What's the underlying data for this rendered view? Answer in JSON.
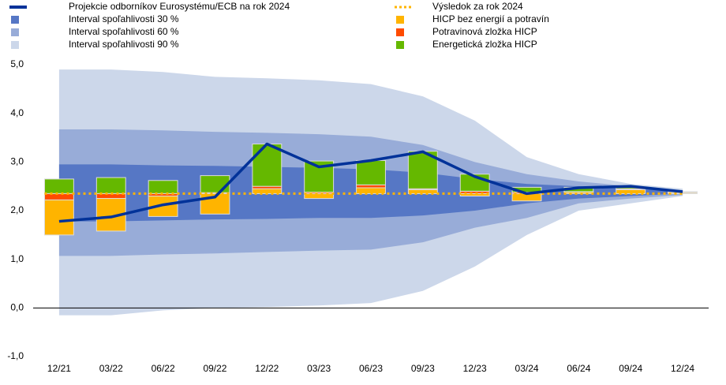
{
  "chart_data": {
    "type": "fan",
    "categories": [
      "12/21",
      "03/22",
      "06/22",
      "09/22",
      "12/22",
      "03/23",
      "06/23",
      "09/23",
      "12/23",
      "03/24",
      "06/24",
      "09/24",
      "12/24"
    ],
    "ylim": [
      -1,
      5
    ],
    "yticks": [
      {
        "value": -1,
        "label": "-1,0"
      },
      {
        "value": 0,
        "label": "0,0"
      },
      {
        "value": 1,
        "label": "1,0"
      },
      {
        "value": 2,
        "label": "2,0"
      },
      {
        "value": 3,
        "label": "3,0"
      },
      {
        "value": 4,
        "label": "4,0"
      },
      {
        "value": 5,
        "label": "5,0"
      }
    ],
    "line": {
      "name": "Projekcie odborníkov Eurosystému/ECB na rok 2024",
      "color": "#003299",
      "values": [
        1.78,
        1.87,
        2.12,
        2.28,
        3.37,
        2.9,
        3.03,
        3.21,
        2.7,
        2.35,
        2.47,
        2.5,
        2.39
      ]
    },
    "bands": [
      {
        "name": "Interval spoľahlivosti 30 %",
        "color": "#5677c5",
        "lower": [
          1.78,
          1.78,
          1.8,
          1.82,
          1.83,
          1.85,
          1.85,
          1.9,
          2.0,
          2.15,
          2.25,
          2.3,
          2.35
        ],
        "upper": [
          2.95,
          2.95,
          2.93,
          2.92,
          2.9,
          2.88,
          2.85,
          2.78,
          2.65,
          2.55,
          2.5,
          2.45,
          2.4
        ]
      },
      {
        "name": "Interval spoľahlivosti 60 %",
        "color": "#98acd8",
        "lower": [
          1.07,
          1.07,
          1.1,
          1.12,
          1.15,
          1.18,
          1.2,
          1.35,
          1.65,
          1.85,
          2.15,
          2.25,
          2.32
        ],
        "upper": [
          3.67,
          3.67,
          3.65,
          3.62,
          3.6,
          3.57,
          3.52,
          3.35,
          3.0,
          2.75,
          2.6,
          2.5,
          2.42
        ]
      },
      {
        "name": "Interval spoľahlivosti 90 %",
        "color": "#ccd7ea",
        "lower": [
          -0.15,
          -0.15,
          -0.05,
          0.0,
          0.02,
          0.05,
          0.1,
          0.35,
          0.85,
          1.5,
          2.0,
          2.15,
          2.3
        ],
        "upper": [
          4.9,
          4.9,
          4.85,
          4.75,
          4.72,
          4.68,
          4.6,
          4.35,
          3.85,
          3.1,
          2.75,
          2.55,
          2.45
        ]
      }
    ],
    "outcome": {
      "name": "Výsledok za rok 2024",
      "color": "#ffb400",
      "value": 2.35
    },
    "series": [
      {
        "name": "HICP bez energií a potravín",
        "color": "#ffb400",
        "values": [
          -0.72,
          -0.67,
          -0.42,
          -0.42,
          0.1,
          -0.1,
          0.12,
          0.08,
          -0.05,
          -0.15,
          0.03,
          0.08,
          0.02
        ]
      },
      {
        "name": "Potravinová zložka HICP",
        "color": "#ff4b00",
        "values": [
          -0.13,
          -0.1,
          -0.05,
          0.02,
          0.05,
          0.03,
          0.06,
          0.02,
          0.05,
          0.03,
          0.01,
          0.02,
          0.01
        ]
      },
      {
        "name": "Energetická zložka HICP",
        "color": "#65b800",
        "values": [
          0.3,
          0.33,
          0.27,
          0.35,
          0.87,
          0.64,
          0.5,
          0.77,
          0.35,
          0.1,
          0.09,
          0.05,
          0.01
        ]
      }
    ]
  }
}
